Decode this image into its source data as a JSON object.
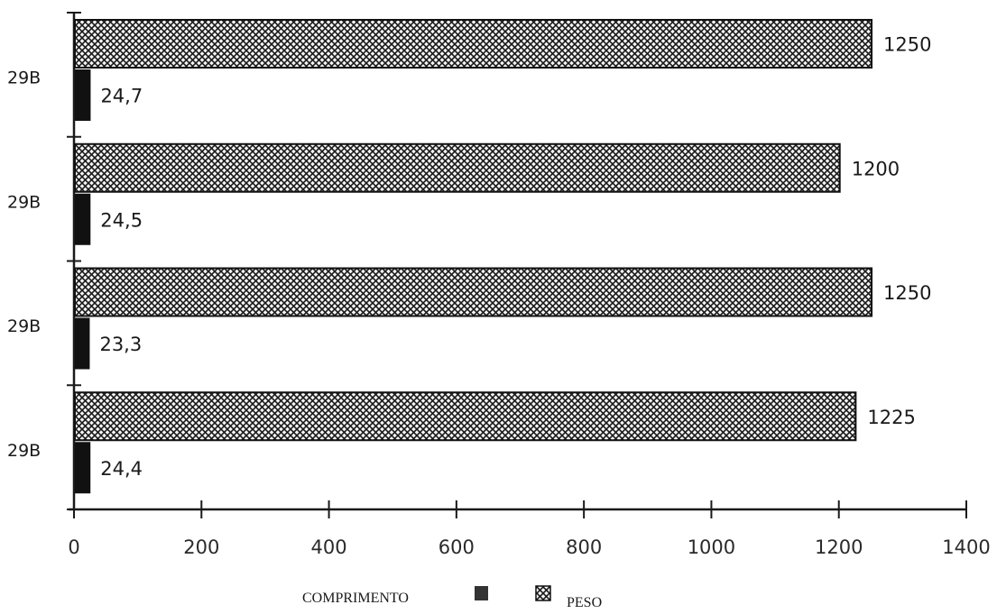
{
  "chart_data": {
    "type": "bar",
    "orientation": "horizontal",
    "categories": [
      "29B",
      "29B",
      "29B",
      "29B"
    ],
    "series": [
      {
        "name": "COMPRIMENTO",
        "values": [
          24.7,
          24.5,
          23.3,
          24.4
        ],
        "labels": [
          "24,7",
          "24,5",
          "23,3",
          "24,4"
        ],
        "fill": "solid",
        "color": "#111111"
      },
      {
        "name": "PESO",
        "values": [
          1250,
          1200,
          1250,
          1225
        ],
        "labels": [
          "1250",
          "1200",
          "1250",
          "1225"
        ],
        "fill": "crosshatch",
        "color": "#222222"
      }
    ],
    "xlim": [
      0,
      1400
    ],
    "xticks": [
      0,
      200,
      400,
      600,
      800,
      1000,
      1200,
      1400
    ],
    "grid": false,
    "legend_position": "bottom-center",
    "title": "",
    "xlabel": "",
    "ylabel": ""
  }
}
